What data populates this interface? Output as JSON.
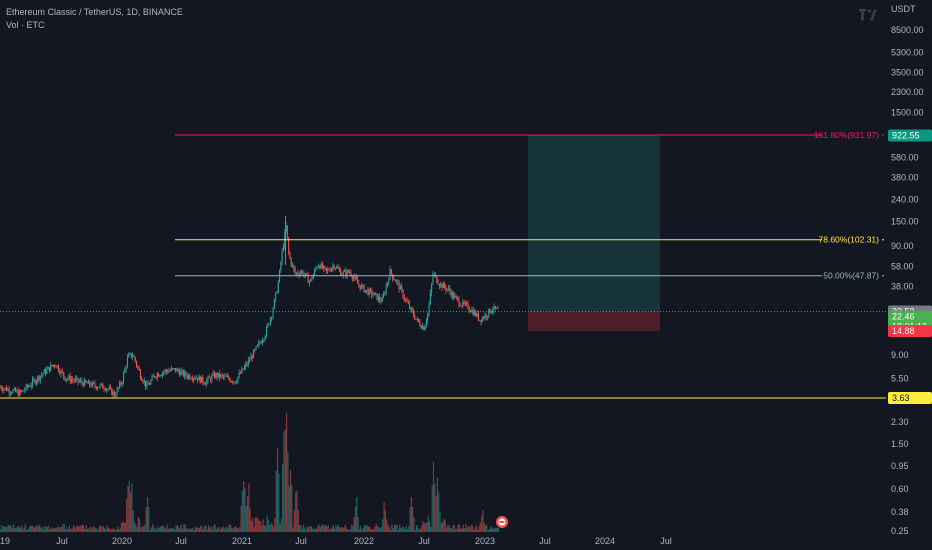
{
  "header": {
    "symbol_title": "Ethereum Classic / TetherUS, 1D, BINANCE",
    "volume_label": "Vol · ETC"
  },
  "price_axis": {
    "currency": "USDT",
    "ticks": [
      "8500.00",
      "5300.00",
      "3500.00",
      "2300.00",
      "1500.00",
      "580.00",
      "380.00",
      "240.00",
      "150.00",
      "90.00",
      "58.00",
      "38.00",
      "9.00",
      "5.50"
    ],
    "tick_values": [
      8500,
      5300,
      3500,
      2300,
      1500,
      580,
      380,
      240,
      150,
      90,
      58,
      38,
      9,
      5.5
    ]
  },
  "volume_axis": {
    "ticks": [
      "2.30",
      "1.50",
      "0.95",
      "0.60",
      "0.38",
      "0.25"
    ]
  },
  "time_axis": {
    "ticks": [
      "19",
      "Jul",
      "2020",
      "Jul",
      "2021",
      "Jul",
      "2022",
      "Jul",
      "2023",
      "Jul",
      "2024",
      "Jul"
    ]
  },
  "fib_levels": [
    {
      "label": "161.80%(931.97)",
      "value": 931.97,
      "color": "#e91e63"
    },
    {
      "label": "78.60%(102.31)",
      "value": 102.31,
      "color": "#ffeb3b"
    },
    {
      "label": "50.00%(47.87)",
      "value": 47.87,
      "color": "#9ab6c0"
    }
  ],
  "support_line": {
    "value": 3.63,
    "color": "#ffeb3b"
  },
  "price_tags": {
    "target": {
      "text": "922.55",
      "color": "#089981"
    },
    "entry": {
      "text": "22.53",
      "color": "#787b86"
    },
    "current_price": "22.46",
    "countdown": "18:01:12",
    "current_color": "#4caf50",
    "stop": {
      "text": "14.88",
      "color": "#f23645"
    },
    "support": {
      "text": "3.63",
      "color": "#ffeb3b"
    }
  },
  "position_tool": {
    "target": 922.55,
    "entry": 22.53,
    "stop": 14.88
  },
  "colors": {
    "up": "#26a69a",
    "down": "#ef5350",
    "background": "#131722"
  },
  "icons": {
    "logo": "tradingview-logo-icon",
    "event": "earnings-flag-icon"
  }
}
